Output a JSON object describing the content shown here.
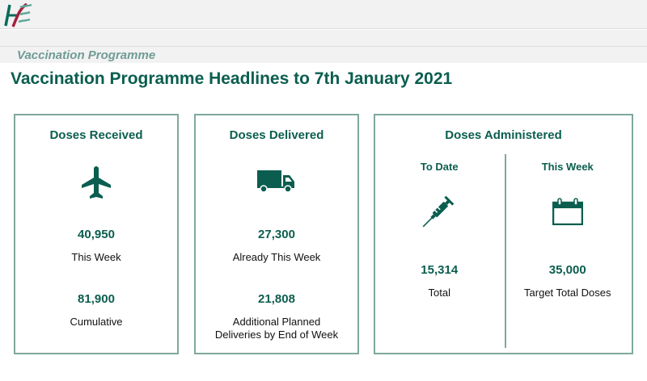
{
  "header": {
    "logo": "HSE",
    "section": "Vaccination Programme"
  },
  "title": "Vaccination Programme Headlines to 7th January 2021",
  "colors": {
    "accent": "#0b5e4f",
    "border": "#7fa89e",
    "logo_red": "#a3203a"
  },
  "cards": [
    {
      "title": "Doses Received",
      "icon": "airplane-icon",
      "stats": [
        {
          "value": "40,950",
          "label": "This Week"
        },
        {
          "value": "81,900",
          "label": "Cumulative"
        }
      ]
    },
    {
      "title": "Doses Delivered",
      "icon": "truck-icon",
      "stats": [
        {
          "value": "27,300",
          "label": "Already This Week"
        },
        {
          "value": "21,808",
          "label": "Additional Planned Deliveries by End of Week"
        }
      ]
    },
    {
      "title": "Doses Administered",
      "columns": [
        {
          "heading": "To Date",
          "icon": "syringe-icon",
          "value": "15,314",
          "label": "Total"
        },
        {
          "heading": "This Week",
          "icon": "calendar-icon",
          "value": "35,000",
          "label": "Target Total Doses"
        }
      ]
    }
  ]
}
